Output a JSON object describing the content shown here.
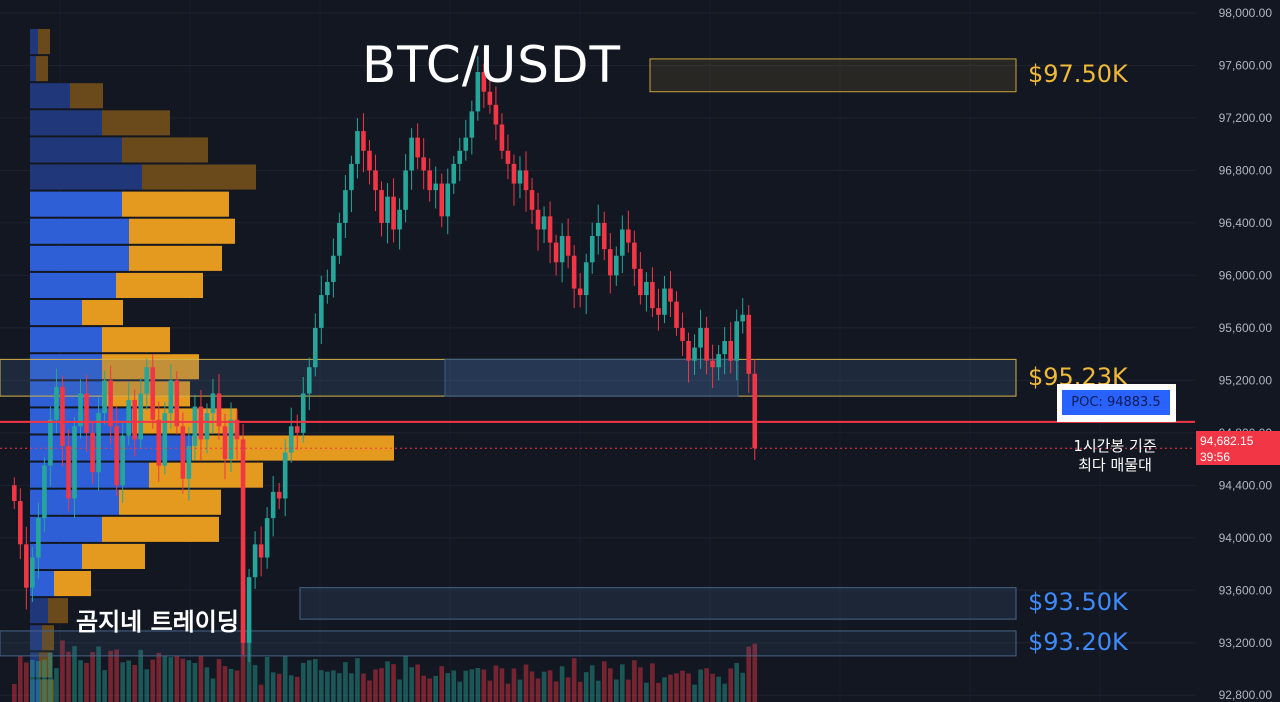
{
  "chart_data": {
    "type": "candlestick",
    "title": "BTC/USDT",
    "watermark": "곰지네 트레이딩",
    "y_axis": {
      "ticks": [
        "98,000.00",
        "97,600.00",
        "97,200.00",
        "96,800.00",
        "96,400.00",
        "96,000.00",
        "95,600.00",
        "95,200.00",
        "94,800.00",
        "94,400.00",
        "94,000.00",
        "93,600.00",
        "93,200.00",
        "92,800.00"
      ],
      "ylim": [
        92700,
        98100
      ],
      "position": "right"
    },
    "current_price": {
      "label": "94,682.15",
      "countdown": "39:56",
      "value": 94682.15,
      "color": "#f23645"
    },
    "poc": {
      "label": "POC: 94883.5",
      "value": 94883.5,
      "note_line1": "1시간봉 기준",
      "note_line2": "최다 매물대",
      "line_color": "#f23645"
    },
    "zones": [
      {
        "label": "$97.50K",
        "top": 97650,
        "bottom": 97400,
        "color": "#f0b93a",
        "fill": "rgba(240,185,58,0.10)"
      },
      {
        "label": "$95.23K",
        "top": 95360,
        "bottom": 95080,
        "color": "#f0b93a",
        "fill": "rgba(74,110,150,0.22)"
      },
      {
        "label": "$93.50K",
        "top": 93620,
        "bottom": 93380,
        "color": "#3d8bfd",
        "fill": "rgba(74,110,150,0.18)"
      },
      {
        "label": "$93.20K",
        "top": 93290,
        "bottom": 93100,
        "color": "#3d8bfd",
        "fill": "rgba(74,110,150,0.14)"
      }
    ],
    "candle_colors": {
      "up": "#26a69a",
      "down": "#f23645"
    },
    "closes": [
      94280,
      93950,
      93620,
      93850,
      94150,
      94550,
      94900,
      95150,
      94700,
      94300,
      94850,
      95100,
      94800,
      94500,
      94950,
      95200,
      94850,
      94400,
      94780,
      95050,
      94750,
      95100,
      95300,
      94900,
      94550,
      94950,
      95200,
      94850,
      94450,
      94700,
      95000,
      94750,
      94950,
      95100,
      94850,
      94600,
      94900,
      94750,
      93200,
      93700,
      93950,
      93850,
      94150,
      94350,
      94300,
      94650,
      94850,
      94800,
      95100,
      95300,
      95600,
      95850,
      95950,
      96150,
      96400,
      96650,
      96850,
      97100,
      96950,
      96800,
      96650,
      96400,
      96600,
      96350,
      96500,
      96800,
      97050,
      96900,
      96800,
      96650,
      96700,
      96450,
      96700,
      96850,
      96950,
      97050,
      97250,
      97550,
      97400,
      97300,
      97150,
      96950,
      96850,
      96700,
      96800,
      96650,
      96500,
      96350,
      96450,
      96250,
      96100,
      96300,
      96150,
      95900,
      95850,
      96100,
      96300,
      96400,
      96200,
      96000,
      96150,
      96350,
      96250,
      96050,
      95850,
      95950,
      95750,
      95700,
      95900,
      95800,
      95600,
      95500,
      95350,
      95450,
      95600,
      95350,
      95300,
      95400,
      95500,
      95350,
      95650,
      95700,
      95250,
      94682
    ]
  }
}
